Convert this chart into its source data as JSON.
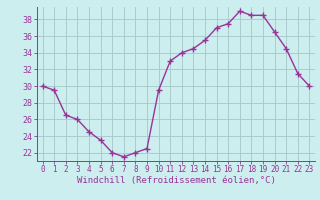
{
  "x": [
    0,
    1,
    2,
    3,
    4,
    5,
    6,
    7,
    8,
    9,
    10,
    11,
    12,
    13,
    14,
    15,
    16,
    17,
    18,
    19,
    20,
    21,
    22,
    23
  ],
  "y": [
    30,
    29.5,
    26.5,
    26,
    24.5,
    23.5,
    22,
    21.5,
    22,
    22.5,
    29.5,
    33,
    34,
    34.5,
    35.5,
    37,
    37.5,
    39,
    38.5,
    38.5,
    36.5,
    34.5,
    31.5,
    30
  ],
  "line_color": "#993399",
  "marker": "+",
  "marker_size": 4,
  "bg_color": "#cceeee",
  "grid_color": "#aacccc",
  "tick_color": "#993399",
  "xlabel": "Windchill (Refroidissement éolien,°C)",
  "xlabel_color": "#993399",
  "ylabel_ticks": [
    22,
    24,
    26,
    28,
    30,
    32,
    34,
    36,
    38
  ],
  "xlim": [
    -0.5,
    23.5
  ],
  "ylim": [
    21,
    39.5
  ],
  "font_family": "monospace"
}
